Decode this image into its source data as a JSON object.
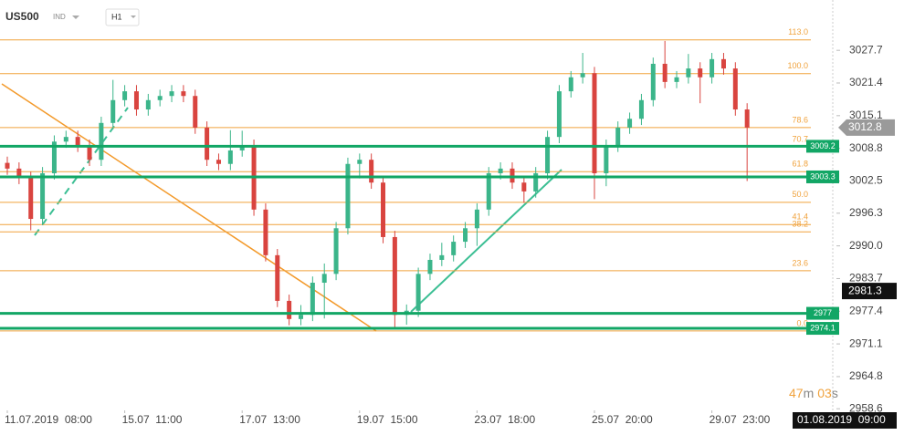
{
  "header": {
    "symbol": "US500",
    "market": "IND",
    "timeframe": "H1"
  },
  "chart_data": {
    "type": "candlestick",
    "ylim": [
      2958.2,
      3037.4
    ],
    "yticks": [
      3027.7,
      3021.4,
      3015.1,
      3008.8,
      3002.5,
      2996.3,
      {
        "value": 2990,
        "label": "2990.0"
      },
      2983.7,
      2977.4,
      2971.1,
      2964.8,
      2958.6
    ],
    "x_labels": [
      {
        "index": 0,
        "label": "11.07.2019  08:00"
      },
      {
        "index": 10,
        "label": "15.07  11:00"
      },
      {
        "index": 20,
        "label": "17.07  13:00"
      },
      {
        "index": 30,
        "label": "19.07  15:00"
      },
      {
        "index": 40,
        "label": "23.07  18:00"
      },
      {
        "index": 50,
        "label": "25.07  20:00"
      },
      {
        "index": 60,
        "label": "29.07  23:00"
      }
    ],
    "current_time_label": "01.08.2019  09:00",
    "up_color": "#3bb58a",
    "down_color": "#d9443f",
    "candles": [
      [
        3006.0,
        3007.2,
        3003.7,
        3004.9
      ],
      [
        3004.9,
        3006.1,
        3001.9,
        3003.1
      ],
      [
        3003.1,
        3004.3,
        2993.0,
        2995.2
      ],
      [
        2995.2,
        3005.2,
        2994.0,
        3004.0
      ],
      [
        3004.0,
        3011.3,
        3002.8,
        3010.1
      ],
      [
        3010.1,
        3012.2,
        3008.9,
        3011.0
      ],
      [
        3011.0,
        3012.2,
        3008.1,
        3009.3
      ],
      [
        3009.3,
        3010.5,
        3005.4,
        3006.6
      ],
      [
        3006.6,
        3014.9,
        3005.4,
        3013.7
      ],
      [
        3013.7,
        3022.0,
        3012.5,
        3018.1
      ],
      [
        3018.1,
        3021.0,
        3016.9,
        3019.8
      ],
      [
        3019.8,
        3021.0,
        3015.1,
        3016.3
      ],
      [
        3016.3,
        3019.3,
        3015.1,
        3018.1
      ],
      [
        3018.1,
        3020.1,
        3016.9,
        3018.9
      ],
      [
        3018.9,
        3021.0,
        3017.7,
        3019.8
      ],
      [
        3019.8,
        3021.0,
        3017.7,
        3018.9
      ],
      [
        3018.9,
        3020.1,
        3011.6,
        3012.8
      ],
      [
        3012.8,
        3014.0,
        3005.4,
        3006.6
      ],
      [
        3006.6,
        3007.8,
        3004.6,
        3005.8
      ],
      [
        3005.8,
        3012.3,
        3004.6,
        3008.4
      ],
      [
        3008.4,
        3012.2,
        3007.2,
        3009.3
      ],
      [
        3009.3,
        3010.5,
        2995.8,
        2997.0
      ],
      [
        2997.0,
        2998.2,
        2987.0,
        2988.2
      ],
      [
        2988.2,
        2989.4,
        2978.2,
        2979.4
      ],
      [
        2979.4,
        2980.6,
        2974.7,
        2975.9
      ],
      [
        2975.9,
        2978.6,
        2974.7,
        2976.7
      ],
      [
        2976.7,
        2984.1,
        2975.5,
        2982.9
      ],
      [
        2982.9,
        2986.6,
        2976.0,
        2984.6
      ],
      [
        2984.6,
        2994.6,
        2983.4,
        2993.4
      ],
      [
        2993.4,
        3007.0,
        2992.2,
        3005.8
      ],
      [
        3005.8,
        3007.8,
        3003.0,
        3006.6
      ],
      [
        3006.6,
        3007.8,
        3001.0,
        3002.2
      ],
      [
        3002.2,
        3003.4,
        2990.5,
        2991.7
      ],
      [
        2991.7,
        2992.9,
        2974.3,
        2976.7
      ],
      [
        2976.7,
        2978.7,
        2974.8,
        2977.5
      ],
      [
        2977.5,
        2985.8,
        2976.3,
        2984.6
      ],
      [
        2984.6,
        2988.5,
        2983.4,
        2987.3
      ],
      [
        2987.3,
        2990.6,
        2986.1,
        2988.2
      ],
      [
        2988.2,
        2992.0,
        2987.0,
        2990.8
      ],
      [
        2990.8,
        2994.6,
        2989.6,
        2993.4
      ],
      [
        2993.4,
        2998.2,
        2990.0,
        2997.0
      ],
      [
        2997.0,
        3005.2,
        2995.8,
        3004.0
      ],
      [
        3004.0,
        3006.1,
        3002.8,
        3004.9
      ],
      [
        3004.9,
        3006.1,
        3001.0,
        3002.2
      ],
      [
        3002.2,
        3003.4,
        2998.3,
        3000.5
      ],
      [
        3000.5,
        3005.2,
        2999.3,
        3004.0
      ],
      [
        3004.0,
        3012.2,
        3002.8,
        3011.0
      ],
      [
        3011.0,
        3021.0,
        3009.8,
        3019.8
      ],
      [
        3019.8,
        3023.7,
        3018.6,
        3022.5
      ],
      [
        3022.5,
        3027.2,
        3021.3,
        3023.3
      ],
      [
        3023.3,
        3024.5,
        2999.0,
        3004.0
      ],
      [
        3004.0,
        3010.5,
        3001.5,
        3009.3
      ],
      [
        3009.3,
        3014.0,
        3008.1,
        3012.8
      ],
      [
        3012.8,
        3015.7,
        3011.6,
        3014.5
      ],
      [
        3014.5,
        3019.3,
        3013.3,
        3018.1
      ],
      [
        3018.1,
        3026.3,
        3016.9,
        3025.1
      ],
      [
        3025.1,
        3029.5,
        3020.4,
        3021.6
      ],
      [
        3021.6,
        3023.7,
        3020.4,
        3022.5
      ],
      [
        3022.5,
        3027.0,
        3021.3,
        3024.2
      ],
      [
        3024.2,
        3025.4,
        3017.5,
        3022.5
      ],
      [
        3022.5,
        3027.2,
        3021.3,
        3026.0
      ],
      [
        3026.0,
        3027.2,
        3023.0,
        3024.2
      ],
      [
        3024.2,
        3025.4,
        3015.1,
        3016.3
      ],
      [
        3016.3,
        3017.5,
        3002.5,
        3012.8
      ]
    ],
    "fib_levels": [
      {
        "label": "113.0",
        "price": 3029.7
      },
      {
        "label": "100.0",
        "price": 3023.2
      },
      {
        "label": "78.6",
        "price": 3012.8
      },
      {
        "label": "70.7",
        "price": 3009.1
      },
      {
        "label": "61.8",
        "price": 3004.3
      },
      {
        "label": "50.0",
        "price": 2998.4
      },
      {
        "label": "41.4",
        "price": 2994.1
      },
      {
        "label": "38.2",
        "price": 2992.7
      },
      {
        "label": "23.6",
        "price": 2985.2
      },
      {
        "label": "0.0",
        "price": 2973.6
      }
    ],
    "fib_color": "#f0a23c",
    "horizontal_lines": [
      3009.2,
      3003.3,
      2977.0,
      2974.1
    ],
    "line_color": "#12a665",
    "current_price": 3012.8,
    "marker_price": 2981.3,
    "countdown": {
      "minutes": "47",
      "minutes_unit": "m",
      "seconds": "03",
      "seconds_unit": "s"
    }
  }
}
